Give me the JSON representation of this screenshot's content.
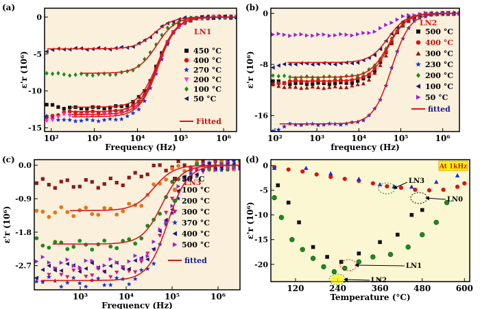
{
  "chart_data": [
    {
      "panel": "(a)",
      "type": "scatter",
      "log_x": true,
      "xlabel": "Frequency (Hz)",
      "ylabel": "ε'r (10⁶)",
      "xlim": [
        70,
        2000000
      ],
      "ylim": [
        -15.5,
        1.2
      ],
      "x_ticks": [
        100,
        1000,
        10000,
        100000,
        1000000
      ],
      "x_tick_labels": [
        "10²",
        "10³",
        "10⁴",
        "10⁵",
        "10⁶"
      ],
      "y_ticks": [
        -15,
        -10,
        -5,
        0
      ],
      "y_tick_labels": [
        "-15",
        "-10",
        "-5",
        "0"
      ],
      "sample": "LN1",
      "series": [
        {
          "name": "450 °C",
          "color": "#111111",
          "marker": "square",
          "low": -12.3,
          "fc": 30000
        },
        {
          "name": "400 °C",
          "color": "#e01010",
          "marker": "circle",
          "low": -12.9,
          "fc": 30000
        },
        {
          "name": "270 °C",
          "color": "#1a2fd0",
          "marker": "star",
          "low": -14.0,
          "fc": 30000
        },
        {
          "name": "200 °C",
          "color": "#ff2fd6",
          "marker": "tri-down",
          "low": -13.3,
          "fc": 30000
        },
        {
          "name": "100 °C",
          "color": "#1e8a1e",
          "marker": "diamond",
          "low": -7.8,
          "fc": 25000
        },
        {
          "name": "50 °C",
          "color": "#1a1a6e",
          "marker": "tri-left",
          "low": -4.3,
          "fc": 25000
        }
      ],
      "fits": [
        {
          "low": -4.3,
          "fc": 25000,
          "xmin": 80
        },
        {
          "low": -7.6,
          "fc": 28000,
          "xmin": 500
        },
        {
          "low": -12.2,
          "fc": 30000,
          "xmin": 300
        },
        {
          "low": -12.8,
          "fc": 30000,
          "xmin": 300
        },
        {
          "low": -13.2,
          "fc": 30000,
          "xmin": 300
        },
        {
          "low": -13.5,
          "fc": 30000,
          "xmin": 300
        }
      ],
      "fit_label": "Fitted"
    },
    {
      "panel": "(b)",
      "type": "scatter",
      "log_x": true,
      "xlabel": "frequency (Hz)",
      "ylabel": "ε'r (10⁶)",
      "xlim": [
        80,
        2500000
      ],
      "ylim": [
        -18.5,
        0.8
      ],
      "x_ticks": [
        100,
        1000,
        10000,
        100000,
        1000000
      ],
      "x_tick_labels": [
        "10²",
        "10³",
        "10⁴",
        "10⁵",
        "10⁶"
      ],
      "y_ticks": [
        -16,
        -8,
        0
      ],
      "y_tick_labels": [
        "-16",
        "-8",
        "0"
      ],
      "sample": "LN2",
      "series": [
        {
          "name": "500 °C",
          "color": "#111111",
          "marker": "square",
          "low": -11.0,
          "fc": 50000
        },
        {
          "name": "400 °C",
          "color": "#e01010",
          "marker": "circle",
          "low": -10.6,
          "fc": 50000
        },
        {
          "name": "300 °C",
          "color": "#a01010",
          "marker": "triangle",
          "low": -11.6,
          "fc": 50000
        },
        {
          "name": "230 °C",
          "color": "#1a2fd0",
          "marker": "star",
          "low": -17.4,
          "fc": 60000
        },
        {
          "name": "200 °C",
          "color": "#1e8a1e",
          "marker": "diamond",
          "low": -10.0,
          "fc": 50000
        },
        {
          "name": "100 °C",
          "color": "#1a1a6e",
          "marker": "tri-left",
          "low": -7.9,
          "fc": 50000
        },
        {
          "name": "50 °C",
          "color": "#9b1fd6",
          "marker": "tri-right",
          "low": -3.4,
          "fc": 50000
        }
      ],
      "fits": [
        {
          "low": -7.7,
          "fc": 50000,
          "xmin": 200
        },
        {
          "low": -10.0,
          "fc": 50000,
          "xmin": 250
        },
        {
          "low": -10.6,
          "fc": 50000,
          "xmin": 250
        },
        {
          "low": -17.3,
          "fc": 60000,
          "xmin": 130
        }
      ],
      "fit_label": "fitted"
    },
    {
      "panel": "(c)",
      "type": "scatter",
      "log_x": true,
      "xlabel": "Frequency (Hz)",
      "ylabel": "ε'r (10⁶)",
      "xlim": [
        100,
        3000000
      ],
      "ylim": [
        -3.35,
        0.15
      ],
      "x_ticks": [
        1000,
        10000,
        100000,
        1000000
      ],
      "x_tick_labels": [
        "10³",
        "10⁴",
        "10⁵",
        "10⁶"
      ],
      "y_ticks": [
        -2.7,
        -1.8,
        -0.9,
        0.0
      ],
      "y_tick_labels": [
        "-2.7",
        "-1.8",
        "-0.9",
        "0.0"
      ],
      "sample": "LN3",
      "series": [
        {
          "name": "50 °C",
          "color": "#8b1a1a",
          "marker": "square",
          "low": -0.5,
          "fc": 20000
        },
        {
          "name": "100 °C",
          "color": "#e8741a",
          "marker": "circle",
          "low": -1.25,
          "fc": 40000
        },
        {
          "name": "200 °C",
          "color": "#1e8a1e",
          "marker": "circle",
          "low": -2.15,
          "fc": 60000
        },
        {
          "name": "300 °C",
          "color": "#e0107a",
          "marker": "tri-down",
          "low": -2.9,
          "fc": 70000
        },
        {
          "name": "370 °C",
          "color": "#1a2fd0",
          "marker": "star",
          "low": -3.15,
          "fc": 80000
        },
        {
          "name": "400 °C",
          "color": "#1a1a6e",
          "marker": "tri-left",
          "low": -2.75,
          "fc": 80000
        },
        {
          "name": "500 °C",
          "color": "#9b1fd6",
          "marker": "tri-right",
          "low": -2.65,
          "fc": 80000
        }
      ],
      "fits": [
        {
          "low": -1.22,
          "fc": 40000,
          "xmin": 600
        },
        {
          "low": -2.12,
          "fc": 60000,
          "xmin": 250
        },
        {
          "low": -3.1,
          "fc": 80000,
          "xmin": 150
        }
      ],
      "fit_label": "fitted"
    },
    {
      "panel": "(d)",
      "type": "scatter",
      "log_x": false,
      "xlabel": "Temperature (°C)",
      "ylabel": "ε'r (10⁶)",
      "xlim": [
        50,
        615
      ],
      "ylim": [
        -23.5,
        1.2
      ],
      "x_ticks": [
        120,
        240,
        360,
        480,
        600
      ],
      "x_tick_labels": [
        "120",
        "240",
        "360",
        "480",
        "600"
      ],
      "y_ticks": [
        -20,
        -15,
        -10,
        -5,
        0
      ],
      "y_tick_labels": [
        "-20",
        "-15",
        "-10",
        "-5",
        "0"
      ],
      "annotation": "At 1kHz",
      "series": [
        {
          "name": "LN0",
          "color": "#e01010",
          "marker": "circle",
          "x": [
            60,
            100,
            140,
            180,
            220,
            260,
            300,
            340,
            380,
            420,
            460,
            500,
            540,
            580,
            600
          ],
          "y": [
            -0.3,
            -0.8,
            -1.2,
            -1.8,
            -2.3,
            -2.7,
            -3.1,
            -3.6,
            -4.2,
            -4.5,
            -4.9,
            -5.0,
            -4.9,
            -4.3,
            -3.6
          ]
        },
        {
          "name": "LN3",
          "color": "#1a2fd0",
          "marker": "triangle",
          "x": [
            60,
            150,
            220,
            300,
            360,
            400,
            450,
            520,
            580
          ],
          "y": [
            -0.5,
            -0.5,
            -1.6,
            -2.7,
            -3.8,
            -4.2,
            -4.3,
            -3.3,
            -2.0
          ]
        },
        {
          "name": "LN1",
          "color": "#111111",
          "marker": "square",
          "x": [
            70,
            100,
            130,
            170,
            210,
            250,
            300,
            360,
            410,
            450,
            480
          ],
          "y": [
            -4.0,
            -7.5,
            -11.5,
            -16.5,
            -18.5,
            -19.5,
            -17.8,
            -15.5,
            -14.0,
            -10.0,
            -9.0
          ]
        },
        {
          "name": "LN2",
          "color": "#1e8a1e",
          "marker": "ball",
          "x": [
            60,
            80,
            110,
            140,
            170,
            200,
            230,
            260,
            300,
            340,
            390,
            440,
            480,
            520,
            550
          ],
          "y": [
            -6.5,
            -10.5,
            -15.0,
            -17.0,
            -18.8,
            -20.5,
            -21.5,
            -20.8,
            -19.5,
            -18.5,
            -18.0,
            -16.5,
            -14.0,
            -11.5,
            -7.5
          ]
        }
      ],
      "labels": [
        "LN3",
        "LN0",
        "LN1",
        "LN2"
      ]
    }
  ]
}
